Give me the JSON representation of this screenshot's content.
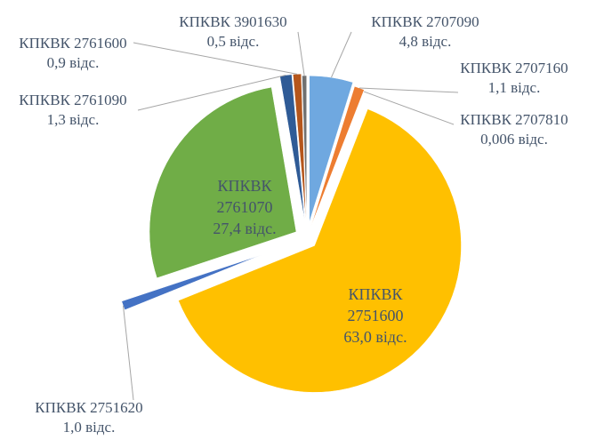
{
  "chart_data": {
    "type": "pie",
    "categories": [
      "КПКВК 2707090",
      "КПКВК 2707160",
      "КПКВК 2707810",
      "КПКВК 2751600",
      "КПКВК 2751620",
      "КПКВК 2761070",
      "КПКВК 2761090",
      "КПКВК 2761600",
      "КПКВК 3901630"
    ],
    "values": [
      4.8,
      1.1,
      0.006,
      63.0,
      1.0,
      27.4,
      1.3,
      0.9,
      0.5
    ],
    "value_labels": [
      "4,8 відс.",
      "1,1 відс.",
      "0,006 відс.",
      "63,0 відс.",
      "1,0 відс.",
      "27,4 відс.",
      "1,3 відс.",
      "0,9 відс.",
      "0,5 відс."
    ],
    "colors": [
      "#6fa8e0",
      "#ed7d31",
      "#a5a5a5",
      "#ffc000",
      "#4472c4",
      "#70ad47",
      "#2f5b96",
      "#b5561c",
      "#707070"
    ]
  }
}
